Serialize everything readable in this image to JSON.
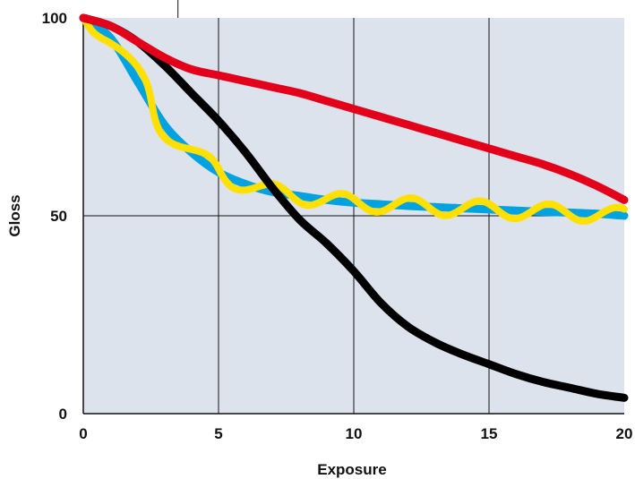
{
  "chart_data": {
    "type": "line",
    "title": "",
    "xlabel": "Exposure",
    "ylabel": "Gloss",
    "xlim": [
      0,
      20
    ],
    "ylim": [
      0,
      100
    ],
    "x_ticks": [
      0,
      5,
      10,
      15,
      20
    ],
    "y_ticks": [
      0,
      50,
      100
    ],
    "grid": true,
    "legend": "none",
    "colors": {
      "plot_background": "#dde3ed",
      "grid": "#111111",
      "red": "#e3001b",
      "black": "#000000",
      "blue": "#00a2e0",
      "yellow": "#ffe000"
    },
    "series": [
      {
        "color": "red",
        "x": [
          0,
          1,
          2,
          3,
          4,
          5,
          6,
          7,
          8,
          9,
          10,
          11,
          12,
          13,
          14,
          15,
          16,
          17,
          18,
          19,
          20
        ],
        "y": [
          100,
          98,
          94,
          90,
          87,
          85.5,
          84,
          82.5,
          81,
          79,
          77,
          75,
          73,
          71,
          69,
          67,
          65,
          63,
          60.5,
          57.5,
          54
        ]
      },
      {
        "color": "black",
        "x": [
          0,
          1,
          2,
          3,
          4,
          5,
          6,
          7,
          8,
          9,
          10,
          11,
          12,
          13,
          14,
          15,
          16,
          17,
          18,
          19,
          20
        ],
        "y": [
          100,
          98,
          94,
          88,
          81,
          74,
          66,
          57,
          49,
          43,
          36,
          28,
          22,
          18,
          15,
          12.5,
          10,
          8,
          6.5,
          5,
          4
        ]
      },
      {
        "color": "blue",
        "x": [
          0,
          1,
          2,
          3,
          4,
          5,
          6,
          7,
          8,
          9,
          10,
          11,
          12,
          13,
          14,
          15,
          16,
          17,
          18,
          19,
          20
        ],
        "y": [
          100,
          95,
          84,
          73,
          66,
          61,
          58,
          56,
          55,
          54,
          53.3,
          52.9,
          52.5,
          52.2,
          51.9,
          51.6,
          51.3,
          51,
          50.8,
          50.5,
          50
        ]
      },
      {
        "color": "yellow",
        "style": "wavy",
        "x": [
          0,
          1,
          2,
          3,
          4,
          5,
          6,
          7,
          8,
          9,
          10,
          11,
          12,
          13,
          14,
          15,
          16,
          17,
          18,
          19,
          20
        ],
        "y": [
          100,
          95,
          84,
          73,
          66,
          61,
          58,
          56,
          55,
          54,
          53.3,
          52.9,
          52.5,
          52.2,
          51.9,
          51.6,
          51.3,
          51,
          50.8,
          50.5,
          50
        ]
      }
    ]
  }
}
